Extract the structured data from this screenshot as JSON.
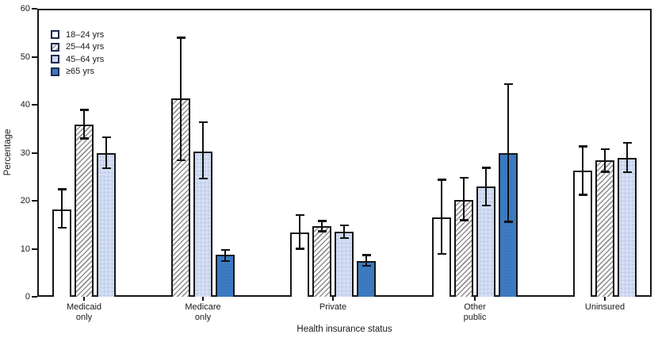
{
  "chart_data": {
    "type": "bar",
    "title": "",
    "xlabel": "Health insurance status",
    "ylabel": "Percentage",
    "ylim": [
      0,
      60
    ],
    "yticks": [
      0,
      10,
      20,
      30,
      40,
      50,
      60
    ],
    "grid": false,
    "legend_position": "top-left",
    "categories": [
      "Medicaid\nonly",
      "Medicare\nonly",
      "Private",
      "Other\npublic",
      "Uninsured"
    ],
    "error_bars": true,
    "colors": {
      "bar_outline": "#161616",
      "hatch_gray": "#8f8f8f",
      "light_blue": "#cfdaf1",
      "medium_blue": "#3c7bc2",
      "legend_swatch_border": "#1c2b4a"
    },
    "series": [
      {
        "name": "18–24 yrs",
        "fill": "white",
        "color": "#ffffff",
        "values": [
          18.2,
          null,
          13.4,
          16.5,
          26.3
        ],
        "ci_low": [
          14.3,
          null,
          10.0,
          8.9,
          21.2
        ],
        "ci_high": [
          22.4,
          null,
          17.1,
          24.4,
          31.4
        ]
      },
      {
        "name": "25–44 yrs",
        "fill": "hatch",
        "color": "#8f8f8f",
        "values": [
          35.8,
          41.3,
          14.7,
          20.1,
          28.4
        ],
        "ci_low": [
          32.9,
          28.4,
          13.6,
          15.9,
          26.0
        ],
        "ci_high": [
          39.0,
          54.0,
          15.8,
          24.8,
          30.8
        ]
      },
      {
        "name": "45–64 yrs",
        "fill": "lightblue",
        "color": "#cfdaf1",
        "values": [
          29.9,
          30.3,
          13.5,
          23.0,
          29.0
        ],
        "ci_low": [
          26.7,
          24.6,
          12.2,
          19.0,
          25.9
        ],
        "ci_high": [
          33.3,
          36.4,
          14.9,
          26.9,
          32.1
        ]
      },
      {
        "name": "≥65 yrs",
        "fill": "blue",
        "color": "#3c7bc2",
        "values": [
          null,
          8.7,
          7.5,
          30.0,
          null
        ],
        "ci_low": [
          null,
          7.4,
          6.4,
          15.6,
          null
        ],
        "ci_high": [
          null,
          9.8,
          8.7,
          44.3,
          null
        ]
      }
    ]
  }
}
